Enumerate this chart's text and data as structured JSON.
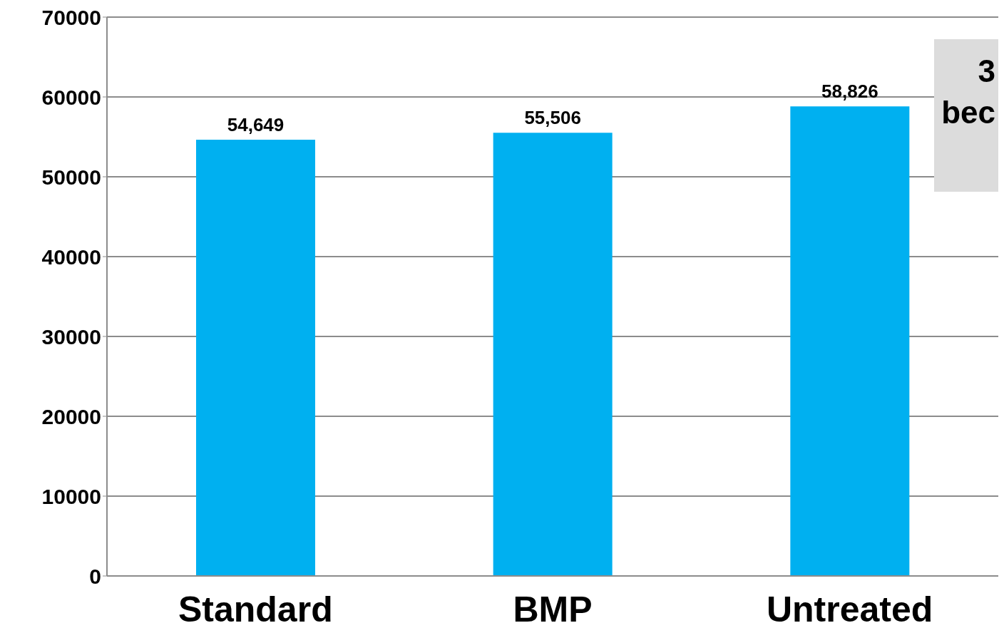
{
  "chart_data": {
    "type": "bar",
    "categories": [
      "Standard",
      "BMP",
      "Untreated"
    ],
    "values": [
      54649,
      55506,
      58826
    ],
    "value_labels": [
      "54,649",
      "55,506",
      "58,826"
    ],
    "color": "#00b0f0",
    "ylim": [
      0,
      70000
    ],
    "yticks": [
      0,
      10000,
      20000,
      30000,
      40000,
      50000,
      60000,
      70000
    ],
    "grid": "y",
    "annotations": [
      "3",
      "bec"
    ]
  }
}
